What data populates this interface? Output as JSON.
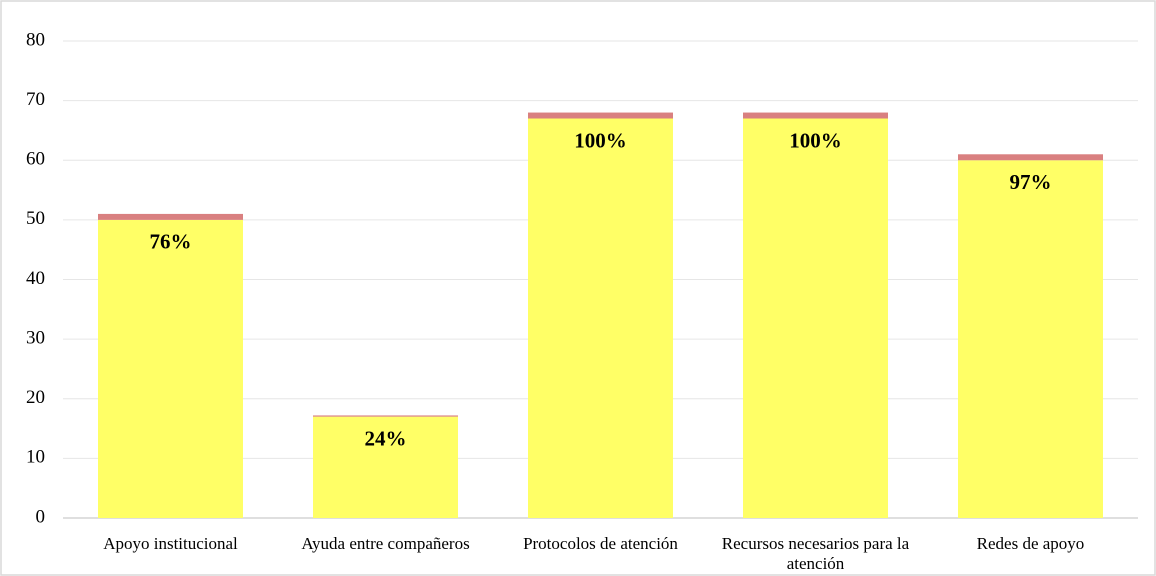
{
  "chart_data": {
    "type": "stacked_bar",
    "categories": [
      "Apoyo institucional",
      "Ayuda entre compañeros",
      "Protocolos de atención",
      "Recursos necesarios para la atención",
      "Redes de apoyo"
    ],
    "series": [
      {
        "color": "#ffff66",
        "values": [
          50,
          17,
          67,
          67,
          60
        ]
      },
      {
        "color": "#d98080",
        "values": [
          1,
          0.2,
          1,
          1,
          1
        ]
      }
    ],
    "annotations": [
      "76%",
      "24%",
      "100%",
      "100%",
      "97%"
    ],
    "ylim": [
      0,
      80
    ],
    "yticks": [
      0,
      10,
      20,
      30,
      40,
      50,
      60,
      70,
      80
    ],
    "grid": true
  }
}
